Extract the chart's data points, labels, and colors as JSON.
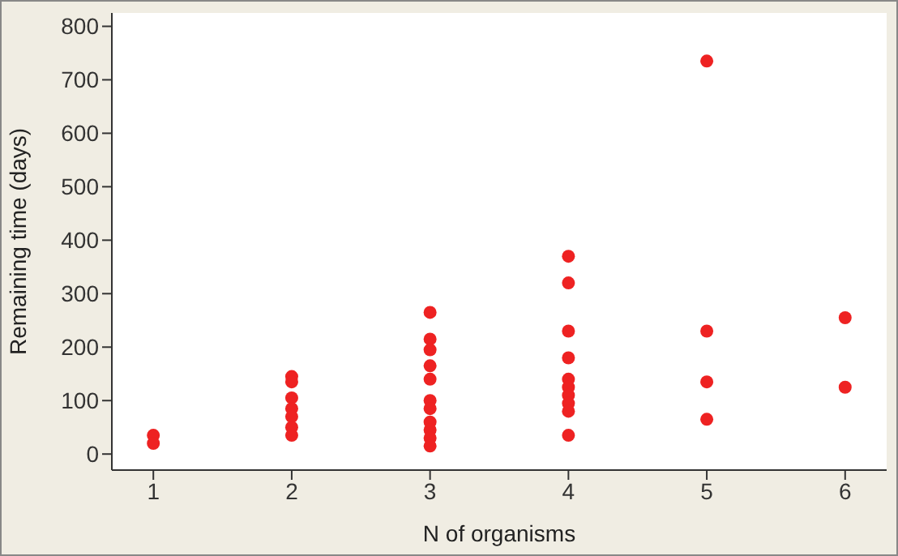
{
  "chart_data": {
    "type": "scatter",
    "xlabel": "N of organisms",
    "ylabel": "Remaining time (days)",
    "x": [
      1,
      1,
      2,
      2,
      2,
      2,
      2,
      2,
      2,
      3,
      3,
      3,
      3,
      3,
      3,
      3,
      3,
      3,
      3,
      3,
      4,
      4,
      4,
      4,
      4,
      4,
      4,
      4,
      4,
      4,
      5,
      5,
      5,
      5,
      6,
      6
    ],
    "series": [
      {
        "color": "#ee2222",
        "values": [
          35,
          20,
          145,
          135,
          105,
          85,
          70,
          50,
          35,
          265,
          215,
          195,
          165,
          140,
          100,
          85,
          60,
          45,
          30,
          15,
          370,
          320,
          230,
          180,
          140,
          125,
          110,
          95,
          80,
          35,
          735,
          230,
          135,
          65,
          255,
          125
        ]
      }
    ],
    "xlim": [
      0.7,
      6.3
    ],
    "xticks": [
      1,
      2,
      3,
      4,
      5,
      6
    ],
    "ylim": [
      -30,
      825
    ],
    "yticks": [
      0,
      100,
      200,
      300,
      400,
      500,
      600,
      700,
      800
    ],
    "marker": "circle",
    "grid": false
  }
}
